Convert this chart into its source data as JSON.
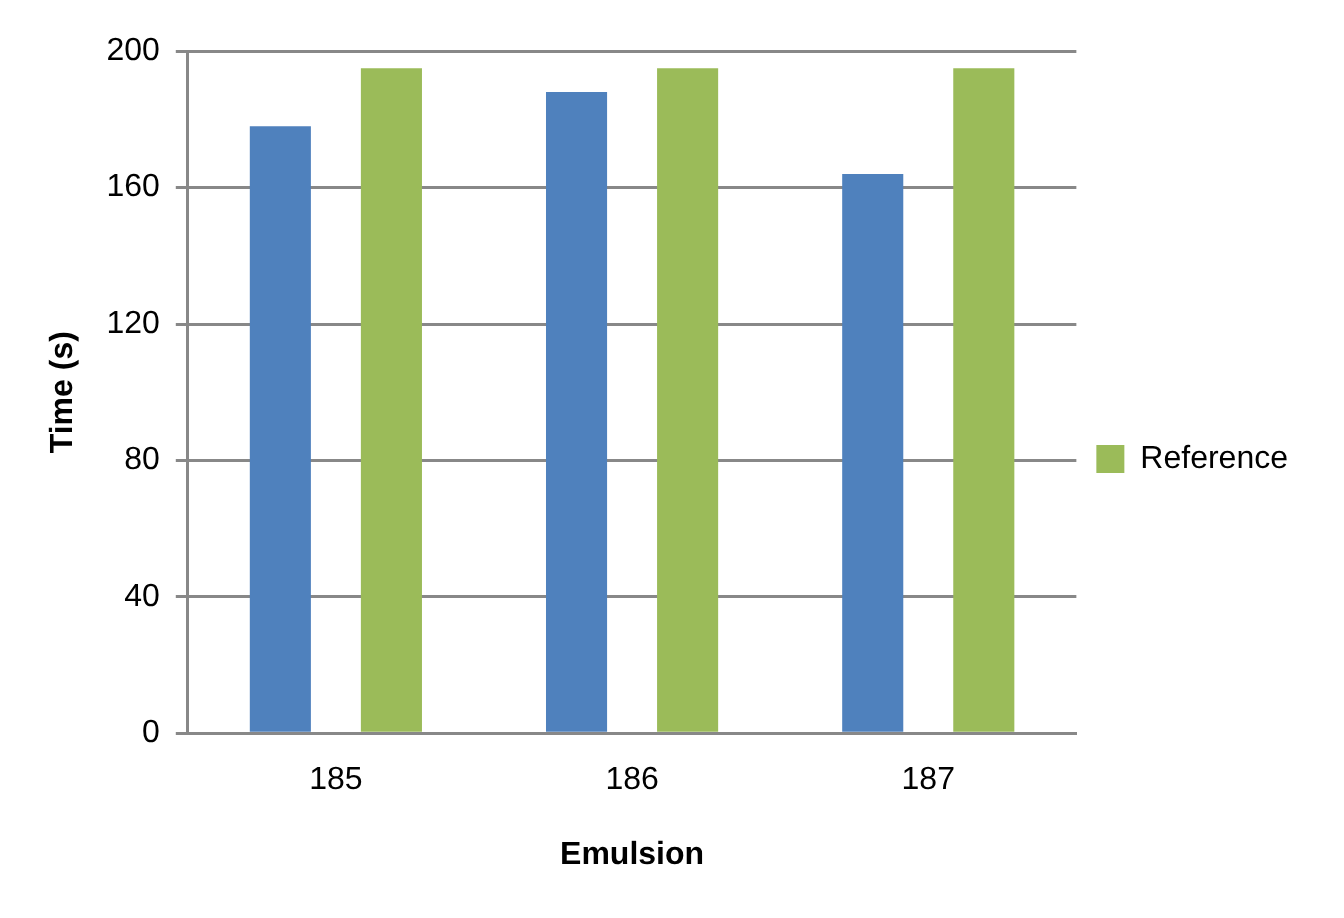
{
  "chart_data": {
    "type": "bar",
    "xlabel": "Emulsion",
    "ylabel": "Time (s)",
    "categories": [
      "185",
      "186",
      "187"
    ],
    "series": [
      {
        "color": "#4f81bd",
        "values": [
          178,
          188,
          164
        ]
      },
      {
        "name": "Reference",
        "color": "#9bbb59",
        "values": [
          195,
          195,
          195
        ]
      }
    ],
    "ylim": [
      0,
      200
    ],
    "yticks": [
      0,
      40,
      80,
      120,
      160,
      200
    ],
    "grid": "y",
    "legend": "right"
  }
}
